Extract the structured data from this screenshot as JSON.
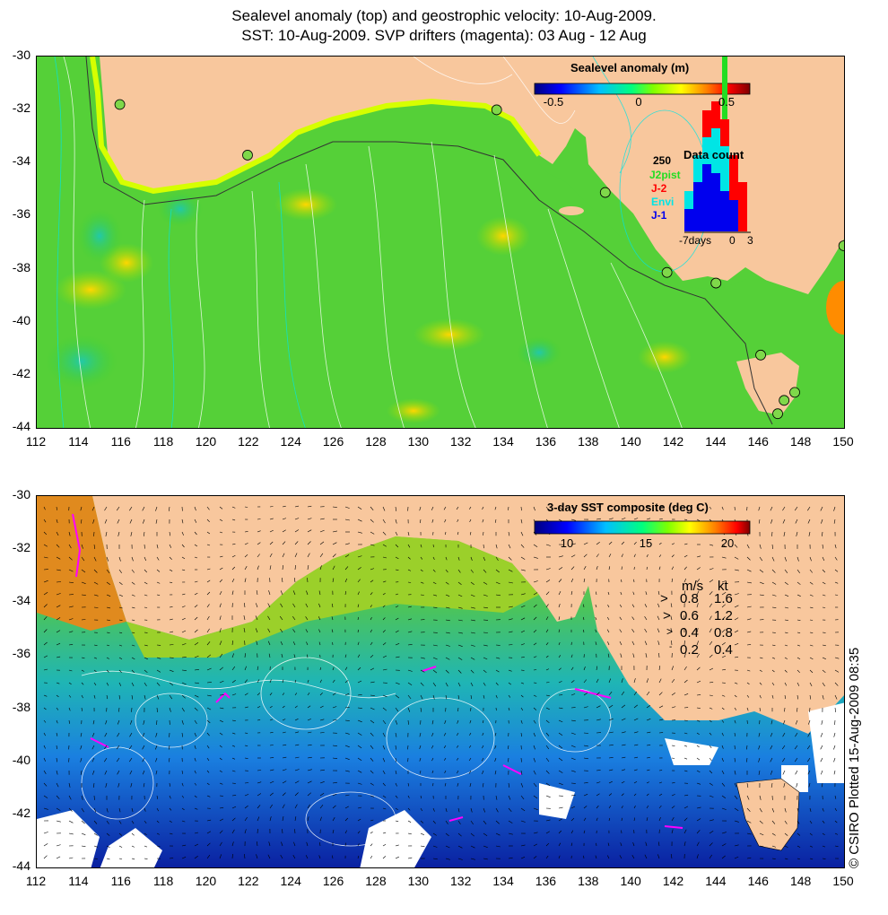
{
  "title": {
    "line1": "Sealevel anomaly (top) and geostrophic velocity: 10-Aug-2009.",
    "line2": "SST: 10-Aug-2009. SVP drifters (magenta): 03 Aug - 12 Aug"
  },
  "axes": {
    "x_ticks": [
      "112",
      "114",
      "116",
      "118",
      "120",
      "122",
      "124",
      "126",
      "128",
      "130",
      "132",
      "134",
      "136",
      "138",
      "140",
      "142",
      "144",
      "146",
      "148",
      "150"
    ],
    "y_ticks": [
      "-30",
      "-32",
      "-34",
      "-36",
      "-38",
      "-40",
      "-42",
      "-44"
    ]
  },
  "top_panel": {
    "colorbar_title": "Sealevel anomaly (m)",
    "colorbar_ticks": [
      "-0.5",
      "0",
      "0.5"
    ],
    "colors": [
      "#00007f",
      "#0000ff",
      "#00bfff",
      "#00ff7f",
      "#7fff00",
      "#ffff00",
      "#ff7f00",
      "#ff0000",
      "#7f0000"
    ],
    "data_count": {
      "title": "Data count",
      "max_label": "250",
      "series": [
        {
          "name": "J2pist",
          "color": "#22dd22"
        },
        {
          "name": "J-2",
          "color": "#ff0000"
        },
        {
          "name": "Envi",
          "color": "#00e5e5"
        },
        {
          "name": "J-1",
          "color": "#0000ee"
        }
      ],
      "x_labels": [
        "-7days",
        "0",
        "3"
      ]
    }
  },
  "bottom_panel": {
    "colorbar_title": "3-day SST composite (deg C)",
    "colorbar_ticks": [
      "10",
      "15",
      "20"
    ],
    "velocity_legend": {
      "header": [
        "m/s",
        "kt"
      ],
      "rows": [
        {
          "ms": "0.8",
          "kt": "1.6"
        },
        {
          "ms": "0.6",
          "kt": "1.2"
        },
        {
          "ms": "0.4",
          "kt": "0.8"
        },
        {
          "ms": "0.2",
          "kt": "0.4"
        }
      ]
    },
    "copyright": "© CSIRO Plotted 15-Aug-2009 08:35"
  },
  "chart_data": [
    {
      "type": "heatmap",
      "title": "Sealevel anomaly (m)",
      "xlim": [
        112,
        150
      ],
      "ylim": [
        -44,
        -30
      ],
      "color_range": [
        -0.6,
        0.6
      ],
      "tide_gauges": [
        {
          "lon": 115.9,
          "lat": -31.8
        },
        {
          "lon": 121.9,
          "lat": -33.7
        },
        {
          "lon": 133.6,
          "lat": -32.0
        },
        {
          "lon": 138.7,
          "lat": -35.1
        },
        {
          "lon": 141.6,
          "lat": -38.1
        },
        {
          "lon": 143.9,
          "lat": -38.5
        },
        {
          "lon": 146.0,
          "lat": -41.2
        },
        {
          "lon": 147.1,
          "lat": -42.9
        },
        {
          "lon": 147.6,
          "lat": -42.6
        },
        {
          "lon": 146.8,
          "lat": -43.4
        },
        {
          "lon": 149.9,
          "lat": -37.1
        }
      ]
    },
    {
      "type": "heatmap",
      "title": "3-day SST composite (deg C)",
      "xlim": [
        112,
        150
      ],
      "ylim": [
        -44,
        -30
      ],
      "color_range": [
        8,
        21
      ]
    }
  ]
}
